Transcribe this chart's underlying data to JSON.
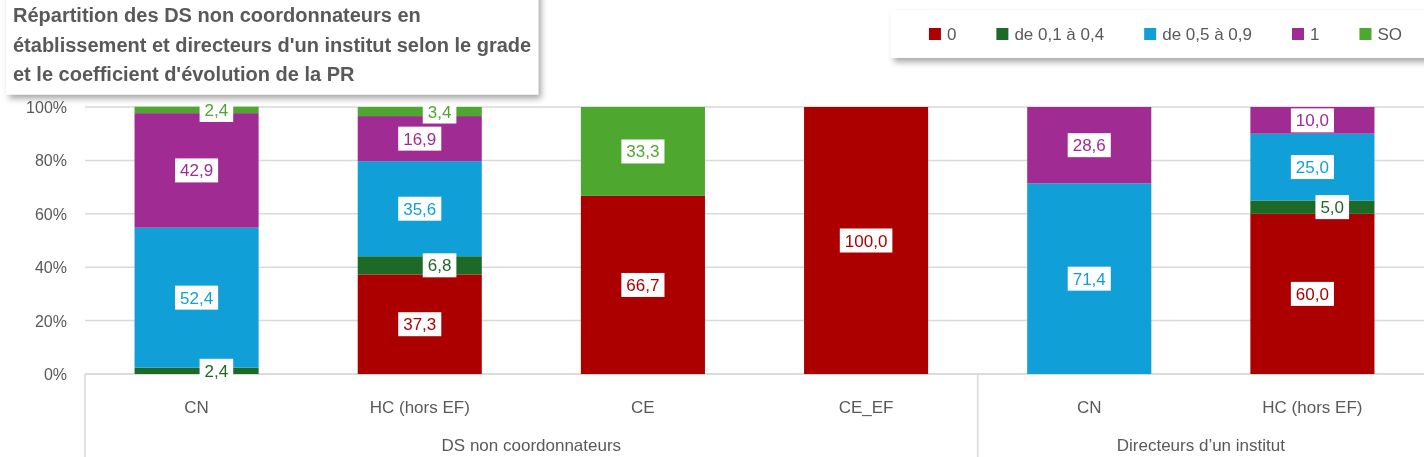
{
  "chart_data": {
    "type": "bar",
    "title": "Répartition des DS non coordonnateurs en établissement et directeurs d'un institut selon le grade et le coefficient d'évolution de la PR",
    "categories": [
      "CN",
      "HC (hors EF)",
      "CE",
      "CE_EF",
      "CN",
      "HC (hors EF)"
    ],
    "annotations": [
      "DS non coordonnateurs",
      "Directeurs d’un institut"
    ],
    "stacked": true,
    "series": [
      {
        "name": "0",
        "color": "#ac0000",
        "values": [
          null,
          37.3,
          66.7,
          100,
          null,
          60
        ],
        "value_labels": [
          null,
          "37,3",
          "66,7",
          "100,0",
          null,
          "60,0"
        ]
      },
      {
        "name": "de 0,1 à 0,4",
        "color": "#1c6a25",
        "values": [
          2.4,
          6.8,
          null,
          null,
          null,
          5
        ],
        "value_labels": [
          "2,4",
          "6,8",
          null,
          null,
          null,
          "5,0"
        ]
      },
      {
        "name": "de 0,5 à 0,9",
        "color": "#119fd7",
        "values": [
          52.4,
          35.6,
          null,
          null,
          71.4,
          25
        ],
        "value_labels": [
          "52,4",
          "35,6",
          null,
          null,
          "71,4",
          "25,0"
        ]
      },
      {
        "name": "1",
        "color": "#a02b93",
        "values": [
          42.9,
          16.9,
          null,
          null,
          28.6,
          10
        ],
        "value_labels": [
          "42,9",
          "16,9",
          null,
          null,
          "28,6",
          "10,0"
        ]
      },
      {
        "name": "SO",
        "color": "#4ea72e",
        "values": [
          2.4,
          3.4,
          33.3,
          null,
          null,
          null
        ],
        "value_labels": [
          "2,4",
          "3,4",
          "33,3",
          null,
          null,
          null
        ]
      }
    ],
    "ylim": [
      0,
      100
    ],
    "yticks": [
      {
        "value": 0,
        "label": "0%"
      },
      {
        "value": 20,
        "label": "20%"
      },
      {
        "value": 40,
        "label": "40%"
      },
      {
        "value": 60,
        "label": "60%"
      },
      {
        "value": 80,
        "label": "80%"
      },
      {
        "value": 100,
        "label": "100%"
      }
    ],
    "grid": "y",
    "legend": "top right"
  }
}
